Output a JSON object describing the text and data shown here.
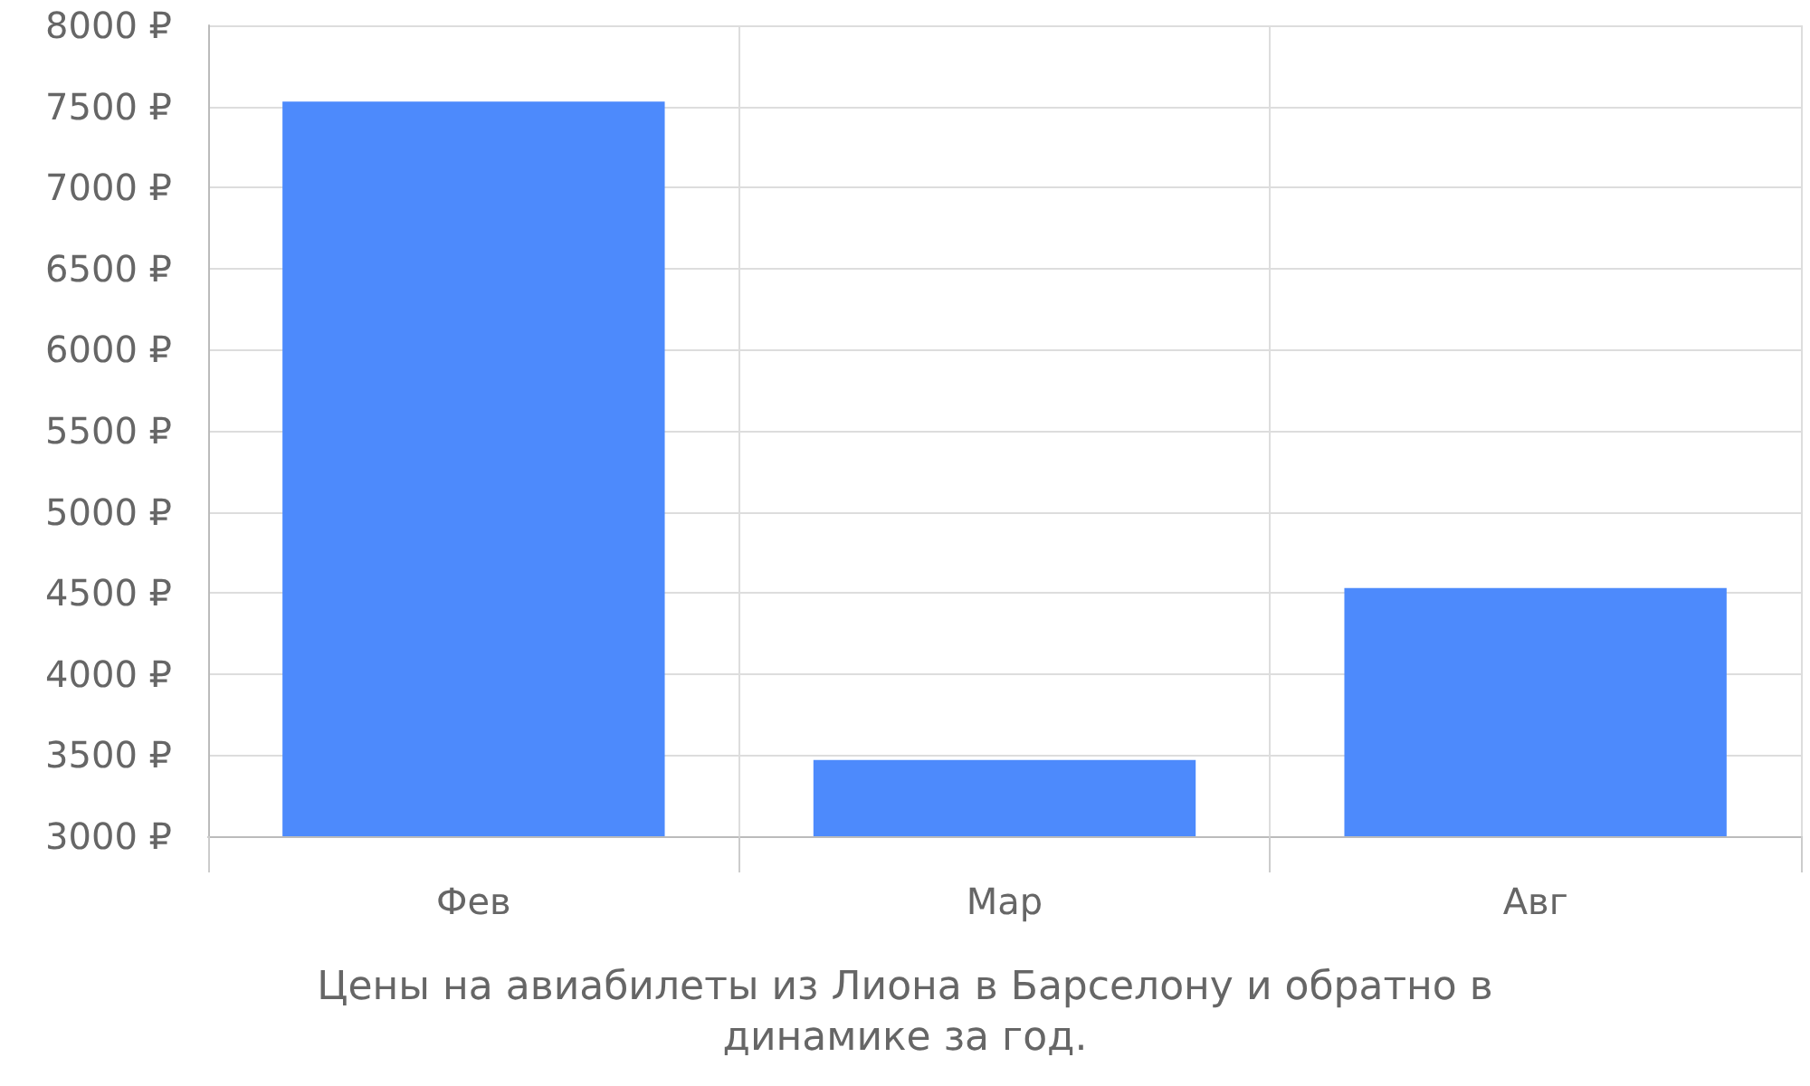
{
  "chart_data": {
    "type": "bar",
    "categories": [
      "Фев",
      "Мар",
      "Авг"
    ],
    "values": [
      7530,
      3470,
      4530
    ],
    "color": "#4d8afc",
    "ylim": [
      3000,
      8000
    ],
    "yticks": [
      {
        "value": 3000,
        "label": "3000 ₽"
      },
      {
        "value": 3500,
        "label": "3500 ₽"
      },
      {
        "value": 4000,
        "label": "4000 ₽"
      },
      {
        "value": 4500,
        "label": "4500 ₽"
      },
      {
        "value": 5000,
        "label": "5000 ₽"
      },
      {
        "value": 5500,
        "label": "5500 ₽"
      },
      {
        "value": 6000,
        "label": "6000 ₽"
      },
      {
        "value": 6500,
        "label": "6500 ₽"
      },
      {
        "value": 7000,
        "label": "7000 ₽"
      },
      {
        "value": 7500,
        "label": "7500 ₽"
      },
      {
        "value": 8000,
        "label": "8000 ₽"
      }
    ],
    "grid": true,
    "annotations": [
      "Цены на авиабилеты из Лиона в Барселону и обратно в динамике за год."
    ]
  }
}
